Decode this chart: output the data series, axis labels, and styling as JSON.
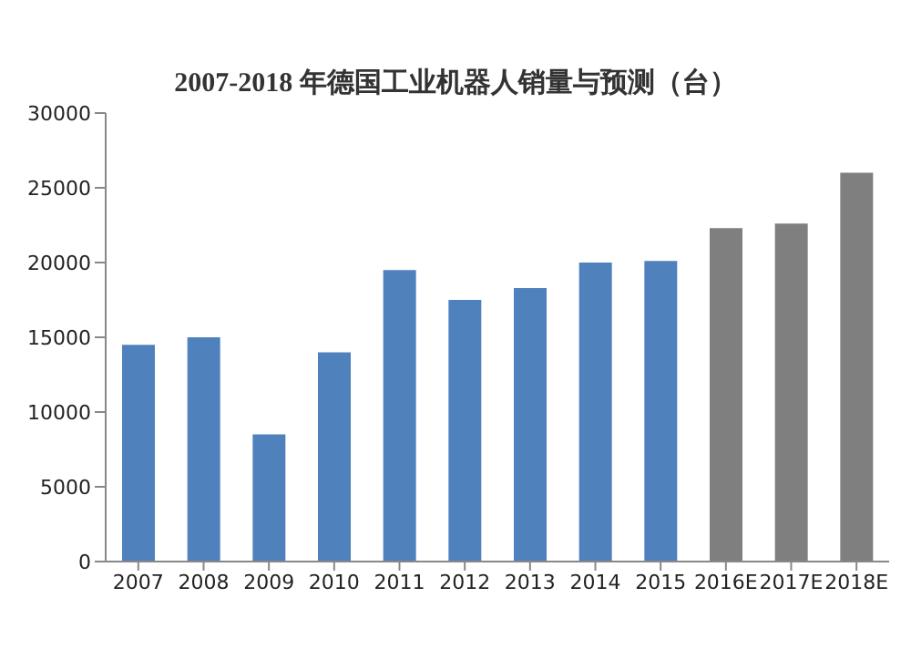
{
  "chart_data": {
    "type": "bar",
    "title": "2007-2018 年德国工业机器人销量与预测（台）",
    "categories": [
      "2007",
      "2008",
      "2009",
      "2010",
      "2011",
      "2012",
      "2013",
      "2014",
      "2015",
      "2016E",
      "2017E",
      "2018E"
    ],
    "values": [
      14500,
      15000,
      8500,
      14000,
      19500,
      17500,
      18300,
      20000,
      20100,
      22300,
      22600,
      26000
    ],
    "colors": [
      "#4f81bd",
      "#4f81bd",
      "#4f81bd",
      "#4f81bd",
      "#4f81bd",
      "#4f81bd",
      "#4f81bd",
      "#4f81bd",
      "#4f81bd",
      "#7f7f7f",
      "#7f7f7f",
      "#7f7f7f"
    ],
    "ylim": [
      0,
      30000
    ],
    "yticks": [
      0,
      5000,
      10000,
      15000,
      20000,
      25000,
      30000
    ]
  }
}
